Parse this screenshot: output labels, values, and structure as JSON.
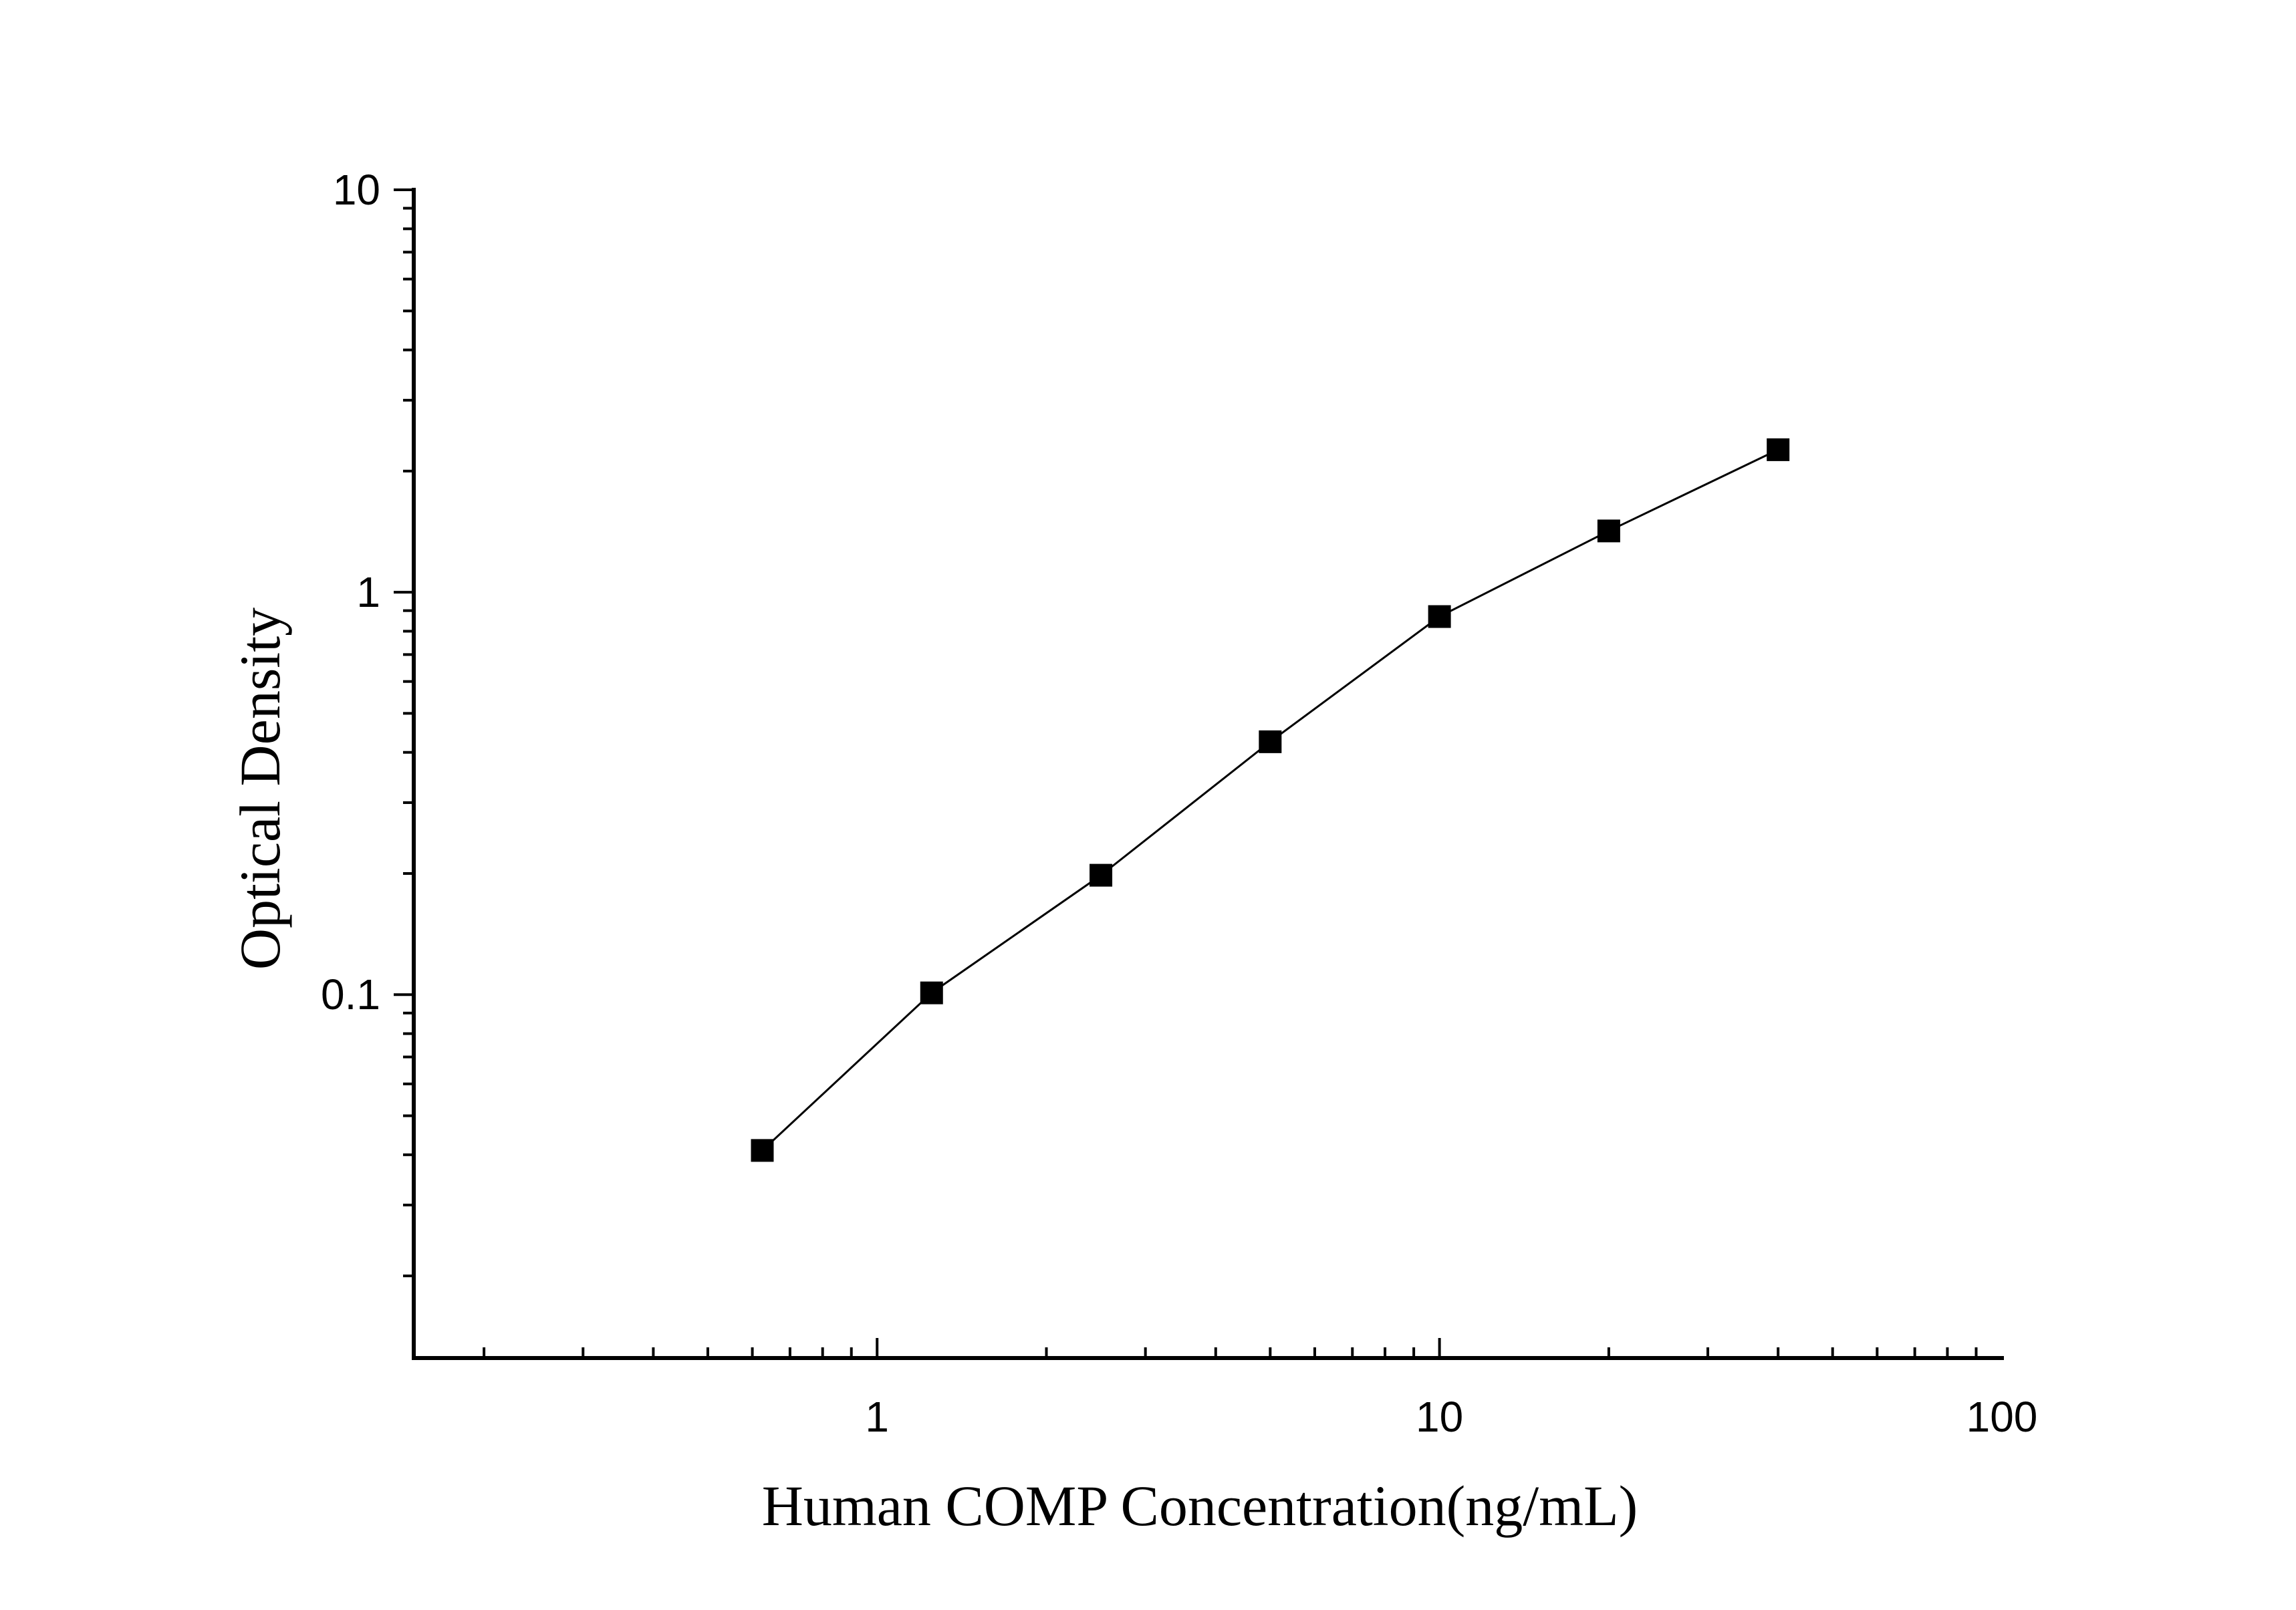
{
  "chart_data": {
    "type": "scatter",
    "title": "",
    "xlabel": "Human COMP Concentration(ng/mL)",
    "ylabel": "Optical Density",
    "x_scale": "log",
    "y_scale": "log",
    "xlim": [
      0.15,
      100
    ],
    "ylim": [
      0.0125,
      10
    ],
    "x_ticks": [
      {
        "value": 1,
        "label": "1"
      },
      {
        "value": 10,
        "label": "10"
      },
      {
        "value": 100,
        "label": "100"
      }
    ],
    "y_ticks": [
      {
        "value": 0.1,
        "label": "0.1"
      },
      {
        "value": 1,
        "label": "1"
      },
      {
        "value": 10,
        "label": "10"
      }
    ],
    "grid": false,
    "legend": "none",
    "series": [
      {
        "marker": "square",
        "line": true,
        "color": "#000000",
        "points": [
          {
            "x": 0.625,
            "y": 0.041
          },
          {
            "x": 1.25,
            "y": 0.101
          },
          {
            "x": 2.5,
            "y": 0.198
          },
          {
            "x": 5,
            "y": 0.425
          },
          {
            "x": 10,
            "y": 0.87
          },
          {
            "x": 20,
            "y": 1.42
          },
          {
            "x": 40,
            "y": 2.26
          }
        ]
      }
    ]
  }
}
